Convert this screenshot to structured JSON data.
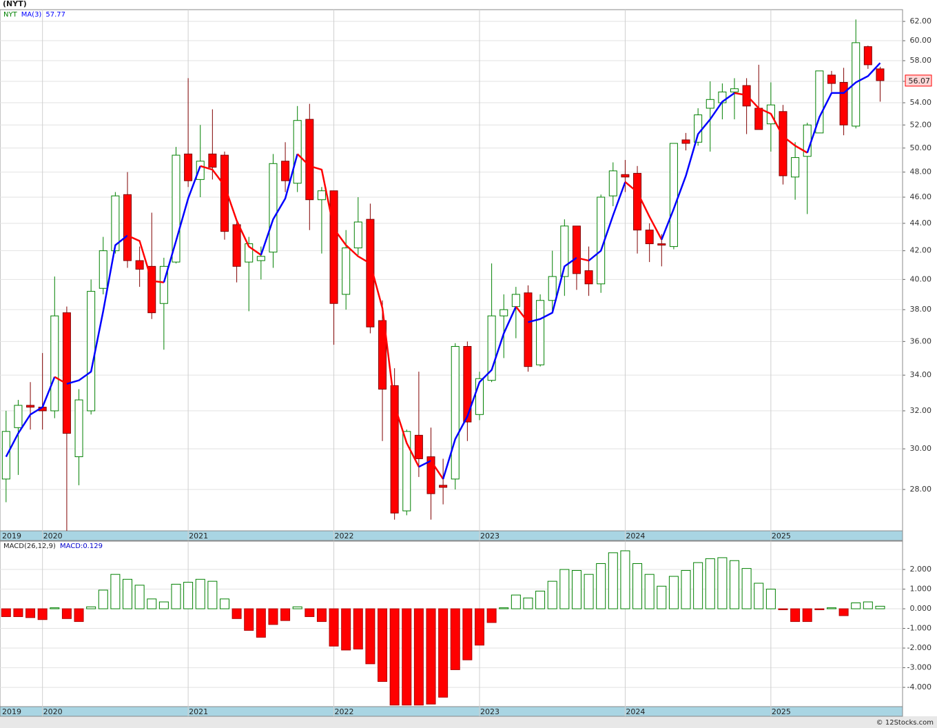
{
  "chart_data": [
    {
      "type": "candlestick",
      "title": "(NYT)",
      "symbol": "NYT",
      "log_scale": true,
      "grid": true,
      "up_color": "#008000",
      "down_color": "#ff0000",
      "down_edge_color": "#800000",
      "categories": [
        "2019",
        null,
        null,
        "2020",
        null,
        null,
        null,
        null,
        null,
        null,
        null,
        null,
        null,
        null,
        null,
        "2021",
        null,
        null,
        null,
        null,
        null,
        null,
        null,
        null,
        null,
        null,
        null,
        "2022",
        null,
        null,
        null,
        null,
        null,
        null,
        null,
        null,
        null,
        null,
        null,
        "2023",
        null,
        null,
        null,
        null,
        null,
        null,
        null,
        null,
        null,
        null,
        null,
        "2024",
        null,
        null,
        null,
        null,
        null,
        null,
        null,
        null,
        null,
        null,
        null,
        "2025",
        null,
        null,
        null,
        null,
        null,
        null,
        null,
        null,
        null
      ],
      "open": [
        28.5,
        31.1,
        32.3,
        32.2,
        32.0,
        37.8,
        29.6,
        32.0,
        39.4,
        42.0,
        46.2,
        41.3,
        40.9,
        38.4,
        41.2,
        49.5,
        47.4,
        49.5,
        49.4,
        43.9,
        41.2,
        41.3,
        41.9,
        48.9,
        47.1,
        52.5,
        45.8,
        46.5,
        39.0,
        42.2,
        44.3,
        37.3,
        33.4,
        27.0,
        30.7,
        29.6,
        28.2,
        28.5,
        35.7,
        31.8,
        33.7,
        37.6,
        38.2,
        39.1,
        34.6,
        38.6,
        40.2,
        43.8,
        40.6,
        39.7,
        46.1,
        47.8,
        47.9,
        43.5,
        42.5,
        42.3,
        50.7,
        50.5,
        53.5,
        54.0,
        55.0,
        55.6,
        53.5,
        52.1,
        53.2,
        47.6,
        49.3,
        51.3,
        56.6,
        55.9,
        51.9,
        59.4,
        57.2
      ],
      "high": [
        32.0,
        32.6,
        33.6,
        35.3,
        40.2,
        38.2,
        33.2,
        40.0,
        43.0,
        46.4,
        48.0,
        42.3,
        44.8,
        41.5,
        50.1,
        56.3,
        52.0,
        53.4,
        49.7,
        44.2,
        43.0,
        42.3,
        49.5,
        50.5,
        53.7,
        53.9,
        46.8,
        46.5,
        43.5,
        46.0,
        45.5,
        38.6,
        34.4,
        31.0,
        34.2,
        31.1,
        29.5,
        35.9,
        36.0,
        34.2,
        41.1,
        39.0,
        39.5,
        39.6,
        39.0,
        42.0,
        44.3,
        43.8,
        42.3,
        46.2,
        48.8,
        49.0,
        48.5,
        44.0,
        43.2,
        50.4,
        51.3,
        53.5,
        56.0,
        55.8,
        56.3,
        56.3,
        57.6,
        55.9,
        53.8,
        50.5,
        52.2,
        57.0,
        57.0,
        57.3,
        62.2,
        59.5,
        57.4
      ],
      "low": [
        27.4,
        28.7,
        31.0,
        31.0,
        31.6,
        26.1,
        28.2,
        31.8,
        39.0,
        41.8,
        40.8,
        39.5,
        37.4,
        35.5,
        41.1,
        46.8,
        46.0,
        47.4,
        42.8,
        39.8,
        37.9,
        40.0,
        40.8,
        46.4,
        46.4,
        43.5,
        41.8,
        35.8,
        38.0,
        41.7,
        36.5,
        30.4,
        26.6,
        26.8,
        28.6,
        26.6,
        27.3,
        28.0,
        30.4,
        31.5,
        33.6,
        35.0,
        36.2,
        34.2,
        34.5,
        37.8,
        38.9,
        39.3,
        38.9,
        39.1,
        45.3,
        46.4,
        41.8,
        41.2,
        40.9,
        42.1,
        49.8,
        50.2,
        49.7,
        52.5,
        52.5,
        51.2,
        51.6,
        49.7,
        47.0,
        45.8,
        44.7,
        51.3,
        55.0,
        51.1,
        51.7,
        57.2,
        54.1
      ],
      "close": [
        30.9,
        32.3,
        32.2,
        32.0,
        37.6,
        30.8,
        32.6,
        39.2,
        42.0,
        46.1,
        41.3,
        40.7,
        37.8,
        40.9,
        49.4,
        47.3,
        48.9,
        48.4,
        43.4,
        40.9,
        42.5,
        41.6,
        48.7,
        47.3,
        52.4,
        45.8,
        46.5,
        38.4,
        42.2,
        44.1,
        36.9,
        33.2,
        26.9,
        30.9,
        29.5,
        27.8,
        28.1,
        35.7,
        31.4,
        33.8,
        37.6,
        38.0,
        39.0,
        34.5,
        38.6,
        40.2,
        43.8,
        40.4,
        39.7,
        46.0,
        48.1,
        47.6,
        43.5,
        42.5,
        42.4,
        50.4,
        50.4,
        52.9,
        54.3,
        55.0,
        55.3,
        53.7,
        51.6,
        53.8,
        47.7,
        49.2,
        52.0,
        57.0,
        55.8,
        52.0,
        59.8,
        57.6,
        56.07
      ],
      "series": [
        {
          "name": "MA(3)",
          "color": "#0000ff",
          "falling_color": "#ff0000",
          "values": [
            29.6,
            30.8,
            31.8,
            32.2,
            33.9,
            33.5,
            33.7,
            34.2,
            37.9,
            42.4,
            43.1,
            42.7,
            39.9,
            39.8,
            42.7,
            45.9,
            48.5,
            48.2,
            46.9,
            44.2,
            42.3,
            41.7,
            44.3,
            45.9,
            49.5,
            48.5,
            48.2,
            43.6,
            42.4,
            41.6,
            41.1,
            38.1,
            32.3,
            30.3,
            29.1,
            29.4,
            28.5,
            30.5,
            31.7,
            33.6,
            34.3,
            36.5,
            38.2,
            37.2,
            37.4,
            37.8,
            40.9,
            41.5,
            41.3,
            42.0,
            44.6,
            47.2,
            46.4,
            44.5,
            42.8,
            45.1,
            47.7,
            51.2,
            52.5,
            54.1,
            54.9,
            54.7,
            53.5,
            53.0,
            51.0,
            50.2,
            49.6,
            52.7,
            54.9,
            54.9,
            55.9,
            56.5,
            57.77
          ]
        }
      ],
      "ylim": [
        26.1,
        63.25
      ],
      "yticks": [
        {
          "value": 28,
          "label": "28.00"
        },
        {
          "value": 30,
          "label": "30.00"
        },
        {
          "value": 32,
          "label": "32.00"
        },
        {
          "value": 34,
          "label": "34.00"
        },
        {
          "value": 36,
          "label": "36.00"
        },
        {
          "value": 38,
          "label": "38.00"
        },
        {
          "value": 40,
          "label": "40.00"
        },
        {
          "value": 42,
          "label": "42.00"
        },
        {
          "value": 44,
          "label": "44.00"
        },
        {
          "value": 46,
          "label": "46.00"
        },
        {
          "value": 48,
          "label": "48.00"
        },
        {
          "value": 50,
          "label": "50.00"
        },
        {
          "value": 52,
          "label": "52.00"
        },
        {
          "value": 54,
          "label": "54.00"
        },
        {
          "value": 56,
          "label": "56.00"
        },
        {
          "value": 58,
          "label": "58.00"
        },
        {
          "value": 60,
          "label": "60.00"
        },
        {
          "value": 62,
          "label": "62.00"
        }
      ]
    },
    {
      "type": "bar",
      "title": "MACD(26,12,9)",
      "grid": true,
      "categories": [
        "2019",
        null,
        null,
        "2020",
        null,
        null,
        null,
        null,
        null,
        null,
        null,
        null,
        null,
        null,
        null,
        "2021",
        null,
        null,
        null,
        null,
        null,
        null,
        null,
        null,
        null,
        null,
        null,
        "2022",
        null,
        null,
        null,
        null,
        null,
        null,
        null,
        null,
        null,
        null,
        null,
        "2023",
        null,
        null,
        null,
        null,
        null,
        null,
        null,
        null,
        null,
        null,
        null,
        "2024",
        null,
        null,
        null,
        null,
        null,
        null,
        null,
        null,
        null,
        null,
        null,
        "2025",
        null,
        null,
        null,
        null,
        null,
        null,
        null,
        null,
        null
      ],
      "series": [
        {
          "name": "MACD",
          "color": "#008000",
          "negative_color": "#ff0000",
          "values": [
            -0.4,
            -0.4,
            -0.45,
            -0.55,
            0.05,
            -0.5,
            -0.65,
            0.1,
            0.95,
            1.75,
            1.5,
            1.2,
            0.5,
            0.35,
            1.25,
            1.35,
            1.5,
            1.4,
            0.5,
            -0.5,
            -1.1,
            -1.45,
            -0.8,
            -0.6,
            0.1,
            -0.4,
            -0.65,
            -1.9,
            -2.1,
            -2.05,
            -2.8,
            -3.7,
            -4.9,
            -4.9,
            -4.9,
            -4.85,
            -4.5,
            -3.1,
            -2.6,
            -1.85,
            -0.7,
            0.05,
            0.7,
            0.55,
            0.9,
            1.4,
            2.0,
            1.95,
            1.75,
            2.3,
            2.85,
            2.95,
            2.3,
            1.75,
            1.15,
            1.65,
            1.95,
            2.35,
            2.55,
            2.6,
            2.45,
            2.05,
            1.3,
            1.0,
            -0.05,
            -0.65,
            -0.65,
            -0.05,
            0.05,
            -0.35,
            0.3,
            0.35,
            0.129
          ]
        }
      ],
      "ylim": [
        -4.98,
        3.44
      ],
      "yticks": [
        {
          "value": 2,
          "label": "2.000"
        },
        {
          "value": 1,
          "label": "1.000"
        },
        {
          "value": 0,
          "label": "0.000"
        },
        {
          "value": -1,
          "label": "-1.000"
        },
        {
          "value": -2,
          "label": "-2.000"
        },
        {
          "value": -3,
          "label": "-3.000"
        },
        {
          "value": -4,
          "label": "-4.000"
        }
      ]
    }
  ],
  "source": "© 12Stocks.com"
}
